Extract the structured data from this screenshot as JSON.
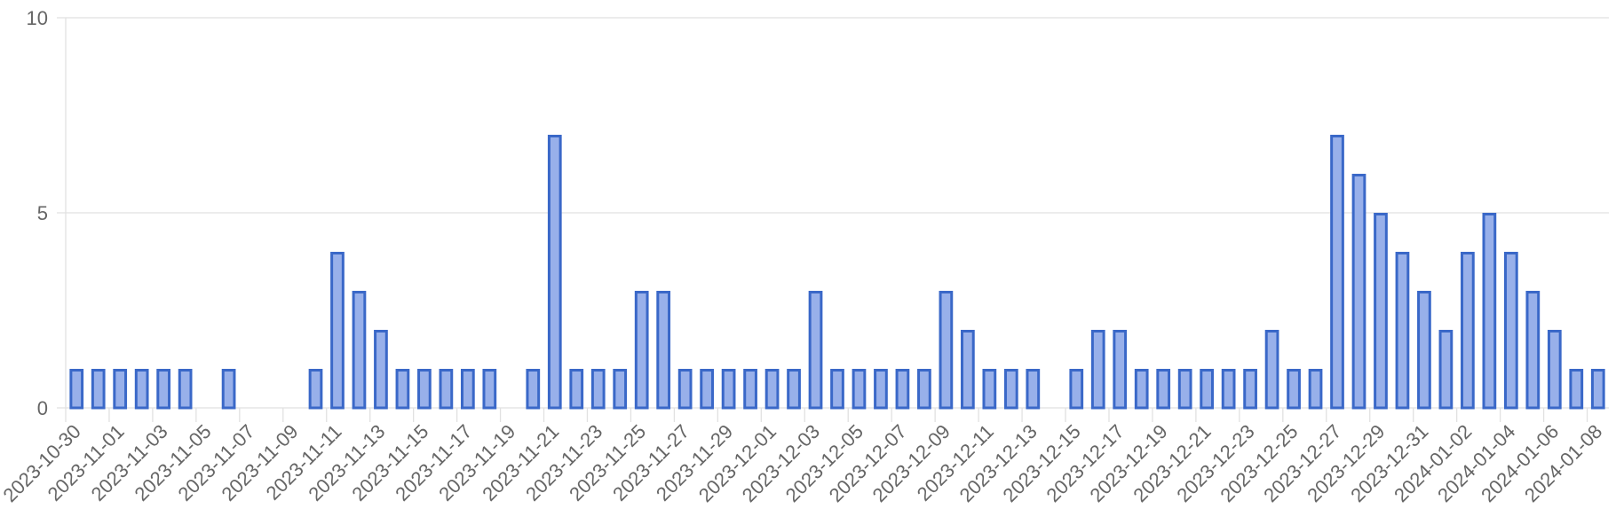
{
  "chart_data": {
    "type": "bar",
    "title": "",
    "xlabel": "",
    "ylabel": "",
    "ylim": [
      0,
      10
    ],
    "y_ticks": [
      0,
      5,
      10
    ],
    "grid": true,
    "legend": "none",
    "colors": {
      "bar_fill": "#98b0ea",
      "bar_stroke": "#3a68c8",
      "grid": "#e1e1e1",
      "tick_text": "#666666"
    },
    "categories": [
      "2023-10-30",
      "2023-10-31",
      "2023-11-01",
      "2023-11-02",
      "2023-11-03",
      "2023-11-04",
      "2023-11-05",
      "2023-11-06",
      "2023-11-07",
      "2023-11-08",
      "2023-11-09",
      "2023-11-10",
      "2023-11-11",
      "2023-11-12",
      "2023-11-13",
      "2023-11-14",
      "2023-11-15",
      "2023-11-16",
      "2023-11-17",
      "2023-11-18",
      "2023-11-19",
      "2023-11-20",
      "2023-11-21",
      "2023-11-22",
      "2023-11-23",
      "2023-11-24",
      "2023-11-25",
      "2023-11-26",
      "2023-11-27",
      "2023-11-28",
      "2023-11-29",
      "2023-11-30",
      "2023-12-01",
      "2023-12-02",
      "2023-12-03",
      "2023-12-04",
      "2023-12-05",
      "2023-12-06",
      "2023-12-07",
      "2023-12-08",
      "2023-12-09",
      "2023-12-10",
      "2023-12-11",
      "2023-12-12",
      "2023-12-13",
      "2023-12-14",
      "2023-12-15",
      "2023-12-16",
      "2023-12-17",
      "2023-12-18",
      "2023-12-19",
      "2023-12-20",
      "2023-12-21",
      "2023-12-22",
      "2023-12-23",
      "2023-12-24",
      "2023-12-25",
      "2023-12-26",
      "2023-12-27",
      "2023-12-28",
      "2023-12-29",
      "2023-12-30",
      "2023-12-31",
      "2024-01-01",
      "2024-01-02",
      "2024-01-03",
      "2024-01-04",
      "2024-01-05",
      "2024-01-06",
      "2024-01-07",
      "2024-01-08"
    ],
    "values": [
      1,
      1,
      1,
      1,
      1,
      1,
      0,
      1,
      0,
      0,
      0,
      1,
      4,
      3,
      2,
      1,
      1,
      1,
      1,
      1,
      0,
      1,
      7,
      1,
      1,
      1,
      3,
      3,
      1,
      1,
      1,
      1,
      1,
      1,
      3,
      1,
      1,
      1,
      1,
      1,
      3,
      2,
      1,
      1,
      1,
      0,
      1,
      2,
      2,
      1,
      1,
      1,
      1,
      1,
      1,
      2,
      1,
      1,
      7,
      6,
      5,
      4,
      3,
      2,
      4,
      5,
      4,
      3,
      2,
      1,
      1
    ],
    "x_tick_labels": [
      "2023-10-30",
      "2023-11-01",
      "2023-11-03",
      "2023-11-05",
      "2023-11-07",
      "2023-11-09",
      "2023-11-11",
      "2023-11-13",
      "2023-11-15",
      "2023-11-17",
      "2023-11-19",
      "2023-11-21",
      "2023-11-23",
      "2023-11-25",
      "2023-11-27",
      "2023-11-29",
      "2023-12-01",
      "2023-12-03",
      "2023-12-05",
      "2023-12-07",
      "2023-12-09",
      "2023-12-11",
      "2023-12-13",
      "2023-12-15",
      "2023-12-17",
      "2023-12-19",
      "2023-12-21",
      "2023-12-23",
      "2023-12-25",
      "2023-12-27",
      "2023-12-29",
      "2023-12-31",
      "2024-01-02",
      "2024-01-04",
      "2024-01-06",
      "2024-01-08"
    ]
  }
}
